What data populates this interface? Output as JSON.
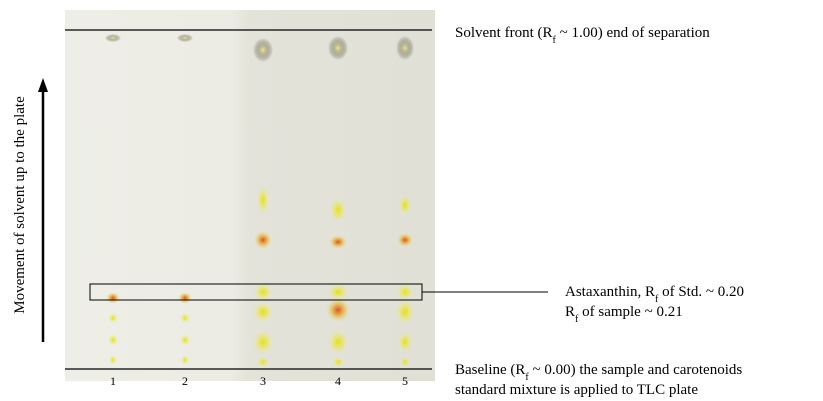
{
  "plate": {
    "lanes": [
      "1",
      "2",
      "3",
      "4",
      "5"
    ]
  },
  "annotations": {
    "solvent_front": [
      "Solvent front (R",
      "f",
      " ~ 1.00) end of separation"
    ],
    "astaxanthin": {
      "line1": [
        "Astaxanthin, R",
        "f",
        " of Std. ~ 0.20"
      ],
      "line2": [
        "R",
        "f",
        " of sample ~ 0.21"
      ]
    },
    "baseline": {
      "line1": [
        "Baseline (R",
        "f",
        " ~ 0.00) the sample and carotenoids"
      ],
      "line2": "standard mixture is applied to TLC plate"
    }
  },
  "axis_label": "Movement of solvent up to the plate"
}
